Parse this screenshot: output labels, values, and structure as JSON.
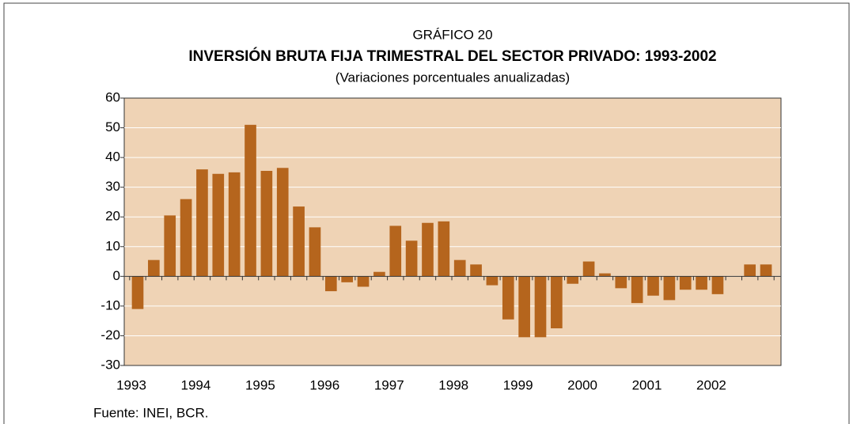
{
  "chart_data": {
    "type": "bar",
    "supertitle": "GRÁFICO 20",
    "title": "INVERSIÓN BRUTA FIJA TRIMESTRAL DEL SECTOR PRIVADO: 1993-2002",
    "subtitle": "(Variaciones porcentuales anualizadas)",
    "source": "Fuente: INEI, BCR.",
    "categories": [
      "1993",
      null,
      null,
      null,
      "1994",
      null,
      null,
      null,
      "1995",
      null,
      null,
      null,
      "1996",
      null,
      null,
      null,
      "1997",
      null,
      null,
      null,
      "1998",
      null,
      null,
      null,
      "1999",
      null,
      null,
      null,
      "2000",
      null,
      null,
      null,
      "2001",
      null,
      null,
      null,
      "2002",
      null,
      null,
      null
    ],
    "values": [
      -11,
      5.5,
      20.5,
      26,
      36,
      34.5,
      35,
      51,
      35.5,
      36.5,
      23.5,
      16.5,
      -5,
      -2,
      -3.5,
      1.5,
      17,
      12,
      18,
      18.5,
      5.5,
      4,
      -3,
      -14.5,
      -20.5,
      -20.5,
      -17.5,
      -2.5,
      5,
      1,
      -4,
      -9,
      -6.5,
      -8,
      -4.5,
      -4.5,
      -6,
      0,
      4,
      4
    ],
    "color": "#b5651d",
    "ylim": [
      -30,
      60
    ],
    "yticks": [
      -30,
      -20,
      -10,
      0,
      10,
      20,
      30,
      40,
      50,
      60
    ],
    "grid": true
  }
}
